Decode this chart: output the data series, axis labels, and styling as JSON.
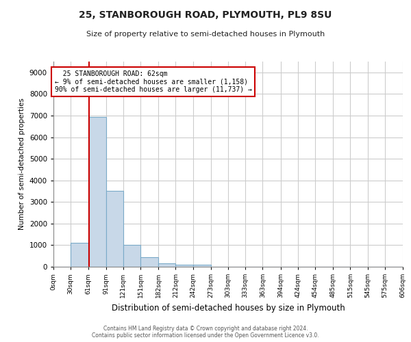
{
  "title": "25, STANBOROUGH ROAD, PLYMOUTH, PL9 8SU",
  "subtitle": "Size of property relative to semi-detached houses in Plymouth",
  "xlabel": "Distribution of semi-detached houses by size in Plymouth",
  "ylabel": "Number of semi-detached properties",
  "property_label": "25 STANBOROUGH ROAD: 62sqm",
  "pct_smaller": 9,
  "count_smaller": 1158,
  "pct_larger": 90,
  "count_larger": 11737,
  "bin_edges": [
    0,
    30,
    61,
    91,
    121,
    151,
    182,
    212,
    242,
    273,
    303,
    333,
    363,
    394,
    424,
    454,
    485,
    515,
    545,
    575,
    606
  ],
  "bar_heights": [
    0,
    1100,
    6950,
    3500,
    1000,
    450,
    170,
    110,
    80,
    0,
    0,
    0,
    0,
    0,
    0,
    0,
    0,
    0,
    0,
    0
  ],
  "bar_color": "#c8d8e8",
  "bar_edge_color": "#7aaac8",
  "red_line_x": 62,
  "annotation_box_color": "#cc0000",
  "grid_color": "#cccccc",
  "background_color": "#ffffff",
  "ylim": [
    0,
    9500
  ],
  "yticks": [
    0,
    1000,
    2000,
    3000,
    4000,
    5000,
    6000,
    7000,
    8000,
    9000
  ],
  "tick_labels": [
    "0sqm",
    "30sqm",
    "61sqm",
    "91sqm",
    "121sqm",
    "151sqm",
    "182sqm",
    "212sqm",
    "242sqm",
    "273sqm",
    "303sqm",
    "333sqm",
    "363sqm",
    "394sqm",
    "424sqm",
    "454sqm",
    "485sqm",
    "515sqm",
    "545sqm",
    "575sqm",
    "606sqm"
  ],
  "footer_line1": "Contains HM Land Registry data © Crown copyright and database right 2024.",
  "footer_line2": "Contains public sector information licensed under the Open Government Licence v3.0."
}
